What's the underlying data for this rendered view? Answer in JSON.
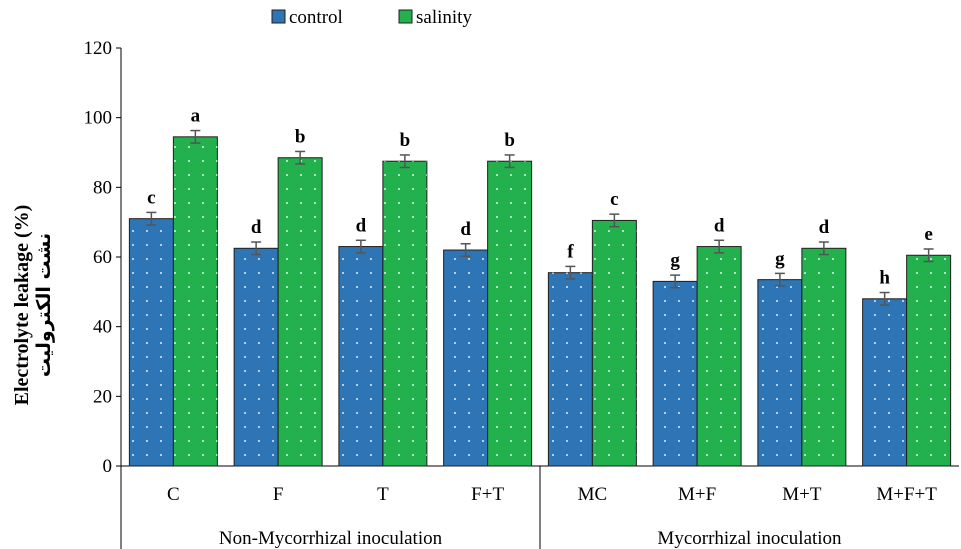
{
  "chart_data": {
    "type": "bar",
    "ylabel": "Electrolyte leakage (%)",
    "ylabel_secondary": "نشت الکترولیت",
    "ylim": [
      0,
      120
    ],
    "yticks": [
      0,
      20,
      40,
      60,
      80,
      100,
      120
    ],
    "grid": false,
    "legend_position": "top-center",
    "categories": [
      "C",
      "F",
      "T",
      "F+T",
      "MC",
      "M+F",
      "M+T",
      "M+F+T"
    ],
    "groups": [
      {
        "label": "Non-Mycorrhizal inoculation",
        "categories": [
          "C",
          "F",
          "T",
          "F+T"
        ]
      },
      {
        "label": "Mycorrhizal inoculation",
        "categories": [
          "MC",
          "M+F",
          "M+T",
          "M+F+T"
        ]
      }
    ],
    "series": [
      {
        "name": "control",
        "color": "#2e75b6",
        "values": [
          71,
          62.5,
          63,
          62,
          55.5,
          53,
          53.5,
          48
        ],
        "errors": [
          1.8,
          1.8,
          1.8,
          1.8,
          1.8,
          1.8,
          1.8,
          1.8
        ],
        "letters": [
          "c",
          "d",
          "d",
          "d",
          "f",
          "g",
          "g",
          "h"
        ]
      },
      {
        "name": "salinity",
        "color": "#22b14c",
        "values": [
          94.5,
          88.5,
          87.5,
          87.5,
          70.5,
          63,
          62.5,
          60.5
        ],
        "errors": [
          1.8,
          1.8,
          1.8,
          1.8,
          1.8,
          1.8,
          1.8,
          1.8
        ],
        "letters": [
          "a",
          "b",
          "b",
          "b",
          "c",
          "d",
          "d",
          "e"
        ]
      }
    ]
  }
}
